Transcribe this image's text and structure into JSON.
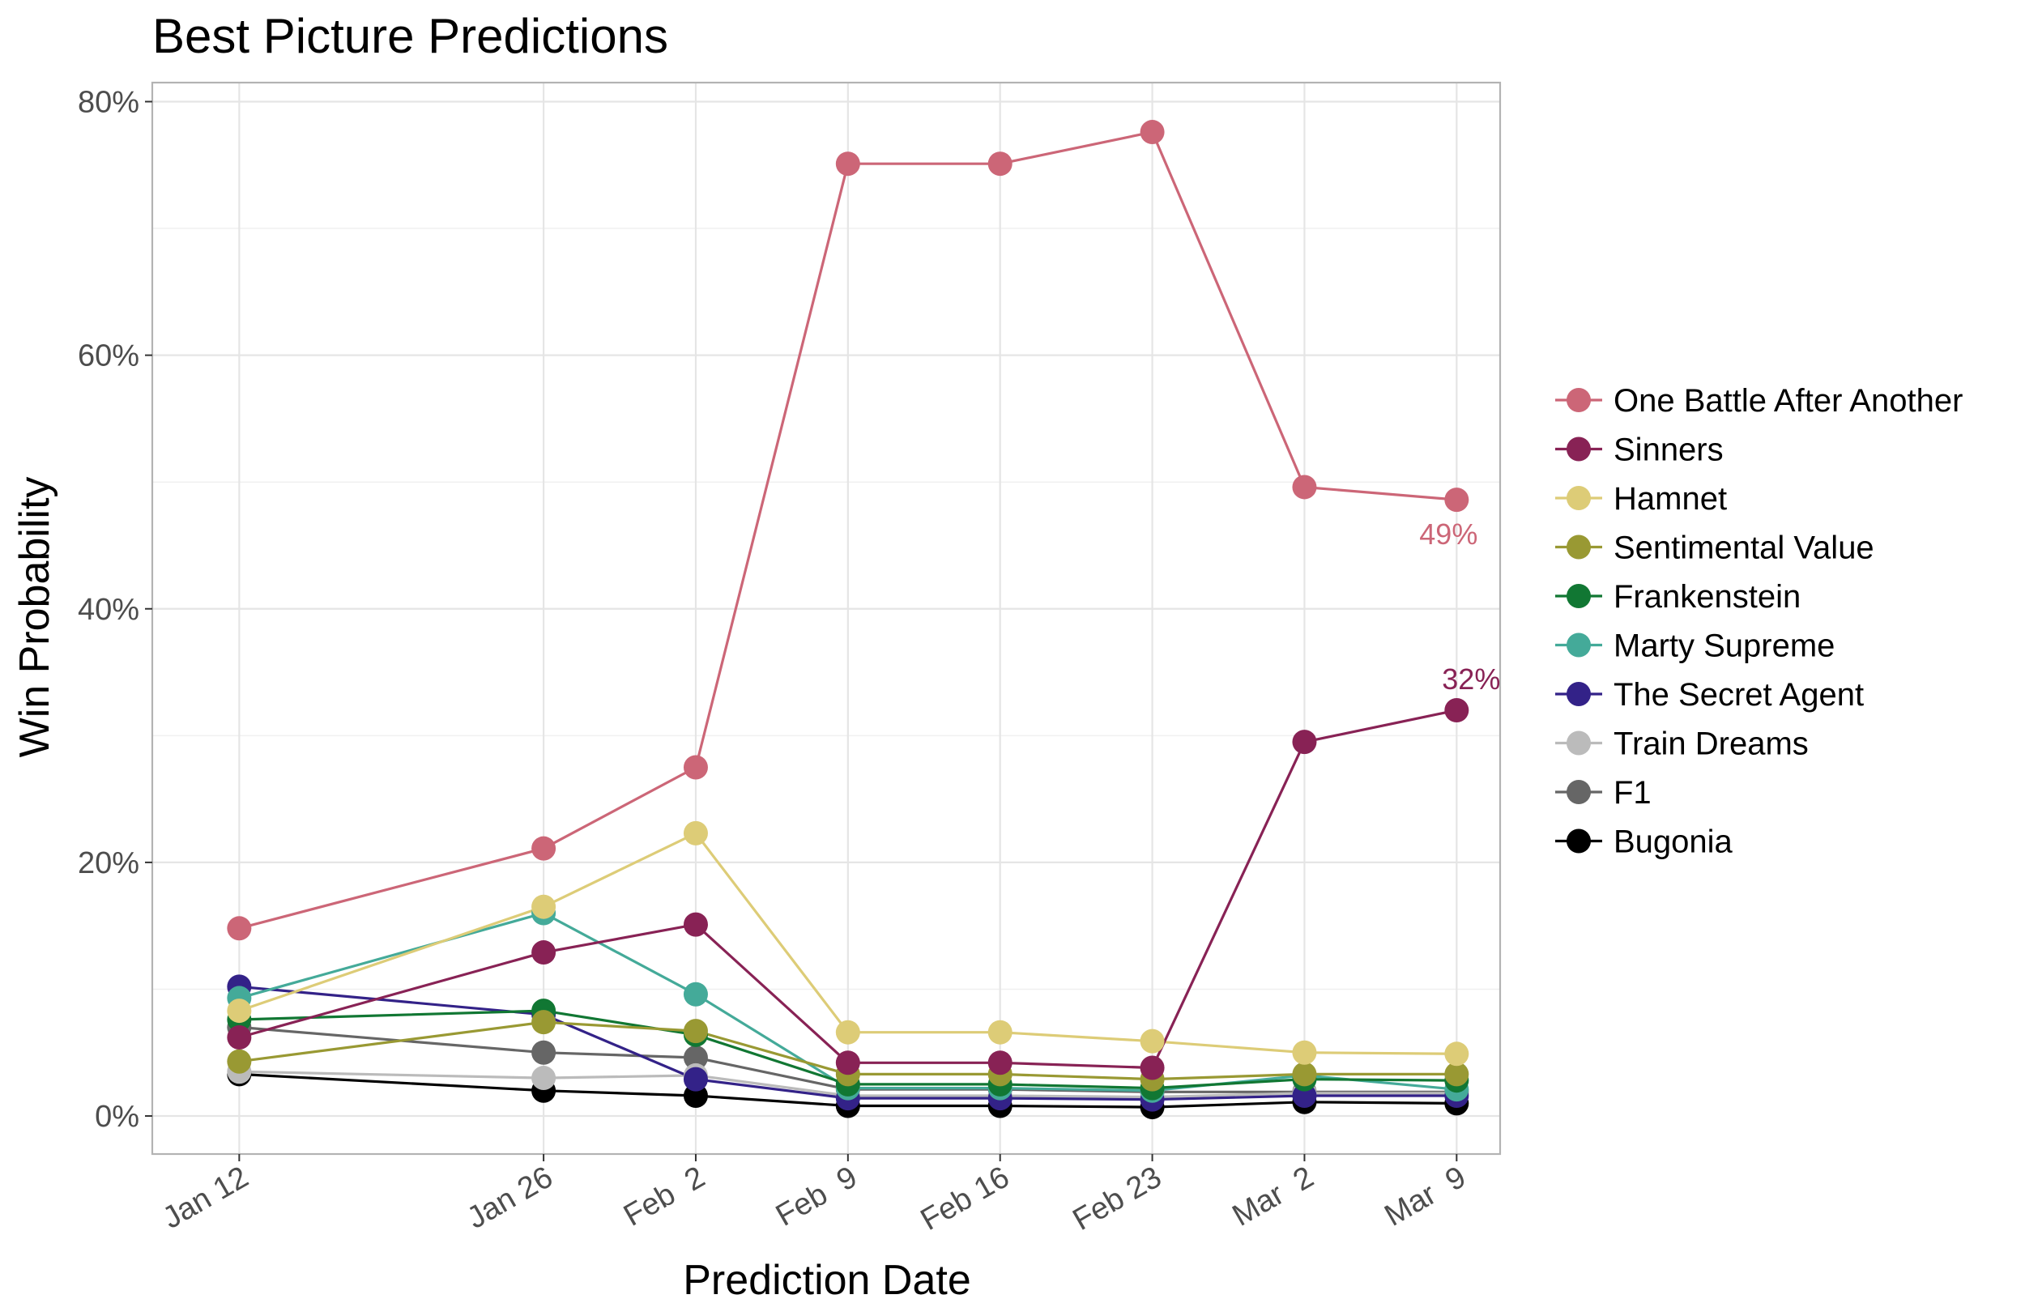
{
  "chart_data": {
    "type": "line",
    "title": "Best Picture Predictions",
    "xlabel": "Prediction Date",
    "ylabel": "Win Probability",
    "x": [
      "2025-01-12",
      "2025-01-26",
      "2025-02-02",
      "2025-02-09",
      "2025-02-16",
      "2025-02-23",
      "2025-03-02",
      "2025-03-09"
    ],
    "x_tick_labels": [
      "Jan 12",
      "Jan 26",
      "Feb  2",
      "Feb  9",
      "Feb 16",
      "Feb 23",
      "Mar  2",
      "Mar  9"
    ],
    "y_ticks": [
      0,
      20,
      40,
      60,
      80
    ],
    "y_tick_labels": [
      "0%",
      "20%",
      "40%",
      "60%",
      "80%"
    ],
    "ylim": [
      -3,
      81.5
    ],
    "grid": true,
    "legend_position": "right",
    "series": [
      {
        "name": "One Battle After Another",
        "color": "#CC6677",
        "values": [
          14.8,
          21.1,
          27.5,
          75.1,
          75.1,
          77.6,
          49.6,
          48.6
        ]
      },
      {
        "name": "Sinners",
        "color": "#882255",
        "values": [
          6.2,
          12.9,
          15.1,
          4.2,
          4.2,
          3.8,
          29.5,
          32.0
        ]
      },
      {
        "name": "Hamnet",
        "color": "#DDCC77",
        "values": [
          8.3,
          16.5,
          22.3,
          6.6,
          6.6,
          5.9,
          5.0,
          4.9
        ]
      },
      {
        "name": "Sentimental Value",
        "color": "#999933",
        "values": [
          4.3,
          7.4,
          6.7,
          3.3,
          3.3,
          2.9,
          3.3,
          3.3
        ]
      },
      {
        "name": "Frankenstein",
        "color": "#117733",
        "values": [
          7.6,
          8.3,
          6.4,
          2.5,
          2.5,
          2.2,
          2.9,
          2.8
        ]
      },
      {
        "name": "Marty Supreme",
        "color": "#44AA99",
        "values": [
          9.3,
          16.0,
          9.6,
          2.2,
          2.2,
          2.0,
          3.2,
          2.1
        ]
      },
      {
        "name": "The Secret Agent",
        "color": "#332288",
        "values": [
          10.2,
          8.0,
          2.9,
          1.4,
          1.4,
          1.3,
          1.6,
          1.6
        ]
      },
      {
        "name": "Train Dreams",
        "color": "#BBBBBB",
        "values": [
          3.5,
          3.0,
          3.2,
          1.6,
          1.6,
          1.5,
          1.8,
          1.8
        ]
      },
      {
        "name": "F1",
        "color": "#666666",
        "values": [
          7.0,
          5.0,
          4.6,
          2.1,
          2.1,
          1.9,
          1.9,
          1.9
        ]
      },
      {
        "name": "Bugonia",
        "color": "#000000",
        "values": [
          3.3,
          2.0,
          1.6,
          0.8,
          0.8,
          0.7,
          1.1,
          1.0
        ]
      }
    ],
    "annotations": [
      {
        "text": "49%",
        "series": "One Battle After Another",
        "x": "2025-03-09",
        "y": 48.6,
        "color": "#CC6677"
      },
      {
        "text": "32%",
        "series": "Sinners",
        "x": "2025-03-09",
        "y": 32.0,
        "color": "#882255"
      }
    ]
  }
}
